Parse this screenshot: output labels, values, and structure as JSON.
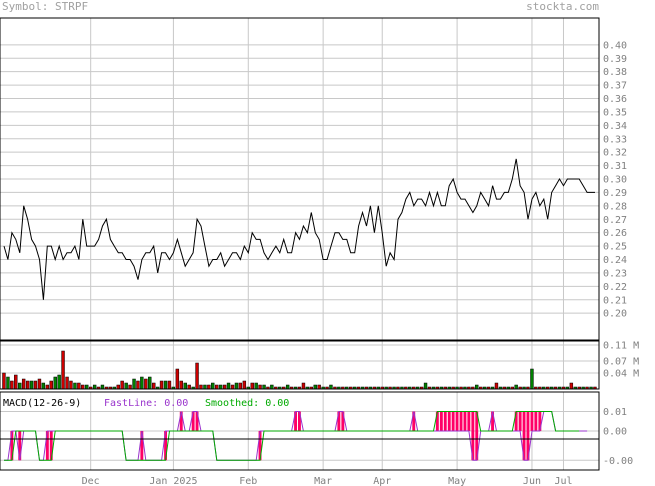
{
  "header": {
    "symbol": "Symbol: STRPF",
    "site": "stockta.com"
  },
  "colors": {
    "grid": "#c8c8c8",
    "frame": "#000000",
    "line": "#000000",
    "vol_up": "#008000",
    "vol_down": "#cc0000",
    "macd_fast": "#9933cc",
    "macd_smooth": "#00aa00",
    "macd_bar": "#ff0066",
    "label": "#808080"
  },
  "chart_data": [
    {
      "type": "line",
      "title": "",
      "ylim": [
        0.18,
        0.42
      ],
      "y_ticks": [
        "0.40",
        "0.39",
        "0.38",
        "0.37",
        "0.36",
        "0.35",
        "0.34",
        "0.33",
        "0.32",
        "0.31",
        "0.30",
        "0.29",
        "0.28",
        "0.27",
        "0.26",
        "0.25",
        "0.24",
        "0.23",
        "0.22",
        "0.21",
        "0.20"
      ],
      "x_tick_labels": [
        "Dec",
        "Jan 2025",
        "Feb",
        "Mar",
        "Apr",
        "May",
        "Jun",
        "Jul"
      ],
      "x_tick_trading_index": [
        22,
        43,
        62,
        81,
        96,
        115,
        134,
        142
      ],
      "grid": true,
      "series": [
        {
          "values": [
            0.25,
            0.24,
            0.26,
            0.255,
            0.245,
            0.28,
            0.27,
            0.255,
            0.25,
            0.24,
            0.21,
            0.25,
            0.25,
            0.24,
            0.25,
            0.24,
            0.245,
            0.245,
            0.25,
            0.24,
            0.27,
            0.25,
            0.25,
            0.25,
            0.255,
            0.265,
            0.27,
            0.255,
            0.25,
            0.245,
            0.245,
            0.24,
            0.24,
            0.235,
            0.225,
            0.24,
            0.245,
            0.245,
            0.25,
            0.23,
            0.245,
            0.245,
            0.24,
            0.245,
            0.255,
            0.245,
            0.235,
            0.24,
            0.245,
            0.27,
            0.265,
            0.25,
            0.235,
            0.24,
            0.24,
            0.245,
            0.235,
            0.24,
            0.245,
            0.245,
            0.24,
            0.25,
            0.245,
            0.26,
            0.255,
            0.255,
            0.245,
            0.24,
            0.245,
            0.25,
            0.245,
            0.255,
            0.245,
            0.245,
            0.26,
            0.255,
            0.265,
            0.26,
            0.275,
            0.26,
            0.255,
            0.24,
            0.24,
            0.25,
            0.26,
            0.26,
            0.255,
            0.255,
            0.245,
            0.245,
            0.265,
            0.275,
            0.265,
            0.28,
            0.26,
            0.28,
            0.26,
            0.235,
            0.245,
            0.24,
            0.27,
            0.275,
            0.285,
            0.29,
            0.28,
            0.285,
            0.285,
            0.28,
            0.29,
            0.28,
            0.29,
            0.28,
            0.28,
            0.295,
            0.3,
            0.29,
            0.285,
            0.285,
            0.28,
            0.275,
            0.28,
            0.29,
            0.285,
            0.28,
            0.295,
            0.285,
            0.285,
            0.29,
            0.29,
            0.3,
            0.315,
            0.295,
            0.29,
            0.27,
            0.285,
            0.29,
            0.28,
            0.285,
            0.27,
            0.29,
            0.295,
            0.3,
            0.295,
            0.3,
            0.3,
            0.3,
            0.3,
            0.295,
            0.29,
            0.29,
            0.29
          ]
        }
      ]
    },
    {
      "type": "bar",
      "title": "",
      "ylim": [
        0,
        0.12
      ],
      "y_ticks": [
        "0.11 M",
        "0.07 M",
        "0.04 M"
      ],
      "series": [
        {
          "values": [
            0.04,
            0.03,
            0.02,
            0.035,
            0.015,
            0.025,
            0.02,
            0.02,
            0.02,
            0.025,
            0.015,
            0.01,
            0.02,
            0.03,
            0.035,
            0.095,
            0.03,
            0.02,
            0.015,
            0.015,
            0.01,
            0.01,
            0.005,
            0.01,
            0.005,
            0.01,
            0.005,
            0.005,
            0.005,
            0.01,
            0.02,
            0.015,
            0.01,
            0.025,
            0.02,
            0.03,
            0.025,
            0.03,
            0.015,
            0.005,
            0.02,
            0.02,
            0.02,
            0.005,
            0.05,
            0.02,
            0.015,
            0.01,
            0.005,
            0.065,
            0.01,
            0.01,
            0.01,
            0.015,
            0.01,
            0.01,
            0.01,
            0.015,
            0.01,
            0.015,
            0.015,
            0.02,
            0.005,
            0.015,
            0.015,
            0.01,
            0.01,
            0.005,
            0.01,
            0.005,
            0.005,
            0.005,
            0.01,
            0.005,
            0.005,
            0.005,
            0.015,
            0.005,
            0.005,
            0.01,
            0.01,
            0.005,
            0.005,
            0.01,
            0.005,
            0.005,
            0.005,
            0.005,
            0.005,
            0.005,
            0.005,
            0.005,
            0.005,
            0.005,
            0.005,
            0.005,
            0.005,
            0.005,
            0.005,
            0.005,
            0.005,
            0.005,
            0.005,
            0.005,
            0.005,
            0.005,
            0.005,
            0.015,
            0.005,
            0.005,
            0.005,
            0.005,
            0.005,
            0.005,
            0.005,
            0.005,
            0.005,
            0.005,
            0.005,
            0.005,
            0.01,
            0.005,
            0.005,
            0.005,
            0.005,
            0.015,
            0.005,
            0.005,
            0.005,
            0.005,
            0.01,
            0.005,
            0.005,
            0.005,
            0.05,
            0.005,
            0.005,
            0.005,
            0.005,
            0.005,
            0.005,
            0.005,
            0.005,
            0.005,
            0.015,
            0.005,
            0.005,
            0.005,
            0.005,
            0.005,
            0.005
          ]
        },
        {
          "direction": [
            "d",
            "u",
            "d",
            "d",
            "u",
            "d",
            "d",
            "u",
            "d",
            "d",
            "u",
            "d",
            "d",
            "u",
            "u",
            "d",
            "d",
            "d",
            "u",
            "d",
            "d",
            "u",
            "d",
            "u",
            "d",
            "u",
            "d",
            "d",
            "u",
            "d",
            "d",
            "u",
            "d",
            "u",
            "d",
            "u",
            "d",
            "u",
            "d",
            "u",
            "d",
            "u",
            "d",
            "u",
            "d",
            "d",
            "u",
            "d",
            "u",
            "d",
            "d",
            "u",
            "d",
            "u",
            "d",
            "u",
            "d",
            "u",
            "d",
            "u",
            "d",
            "d",
            "u",
            "d",
            "u",
            "d",
            "u",
            "d",
            "u",
            "d",
            "u",
            "d",
            "u",
            "d",
            "u",
            "d",
            "d",
            "u",
            "d",
            "u",
            "d",
            "u",
            "d",
            "u",
            "d",
            "u",
            "d",
            "u",
            "d",
            "u",
            "d",
            "u",
            "d",
            "u",
            "d",
            "u",
            "d",
            "u",
            "d",
            "u",
            "d",
            "u",
            "d",
            "u",
            "d",
            "u",
            "d",
            "u",
            "d",
            "u",
            "d",
            "u",
            "d",
            "u",
            "d",
            "u",
            "d",
            "u",
            "d",
            "d",
            "u",
            "d",
            "u",
            "d",
            "u",
            "d",
            "u",
            "d",
            "u",
            "d",
            "u",
            "d",
            "u",
            "d",
            "u",
            "d",
            "d",
            "u",
            "d",
            "u",
            "d",
            "u",
            "d",
            "u",
            "d",
            "u",
            "d",
            "u",
            "d",
            "u",
            "d"
          ]
        }
      ]
    },
    {
      "type": "line",
      "title": "",
      "label_prefix": "MACD(12-26-9)",
      "fastline_label": "FastLine: 0.00",
      "smoothed_label": "Smoothed: 0.00",
      "ylim": [
        -0.02,
        0.02
      ],
      "y_ticks": [
        "0.01",
        "0.00",
        "-0.00"
      ],
      "series": [
        {
          "name": "FastLine",
          "values": [
            -0.015,
            -0.015,
            0.0,
            0.0,
            -0.015,
            0.0,
            0.0,
            0.0,
            0.0,
            -0.015,
            -0.015,
            0.0,
            0.0,
            0.0,
            0.0,
            0.0,
            0.0,
            0.0,
            0.0,
            0.0,
            0.0,
            0.0,
            0.0,
            0.0,
            0.0,
            0.0,
            0.0,
            0.0,
            0.0,
            0.0,
            0.0,
            -0.015,
            -0.015,
            -0.015,
            -0.015,
            0.0,
            -0.015,
            -0.015,
            -0.015,
            -0.015,
            -0.015,
            0.0,
            0.0,
            0.0,
            0.0,
            0.01,
            0.0,
            0.0,
            0.01,
            0.01,
            0.0,
            0.0,
            0.0,
            0.0,
            -0.015,
            -0.015,
            -0.015,
            -0.015,
            -0.015,
            -0.015,
            -0.015,
            -0.015,
            -0.015,
            -0.015,
            -0.015,
            0.0,
            0.0,
            0.0,
            0.0,
            0.0,
            0.0,
            0.0,
            0.0,
            0.0,
            0.01,
            0.01,
            0.0,
            0.0,
            0.0,
            0.0,
            0.0,
            0.0,
            0.0,
            0.0,
            0.0,
            0.01,
            0.01,
            0.0,
            0.0,
            0.0,
            0.0,
            0.0,
            0.0,
            0.0,
            0.0,
            0.0,
            0.0,
            0.0,
            0.0,
            0.0,
            0.0,
            0.0,
            0.0,
            0.0,
            0.01,
            0.0,
            0.0,
            0.0,
            0.0,
            0.0,
            0.0,
            0.0,
            0.0,
            0.0,
            0.0,
            0.0,
            0.0,
            0.0,
            0.0,
            -0.015,
            -0.015,
            0.0,
            0.0,
            0.0,
            0.01,
            0.0,
            0.0,
            0.0,
            0.0,
            0.0,
            0.0,
            0.0,
            -0.015,
            -0.015,
            0.0,
            0.0,
            0.0,
            0.01,
            0.01,
            0.01,
            0.0,
            0.0,
            0.0,
            0.0,
            0.0,
            0.0,
            0.0,
            0.0,
            0.0
          ]
        },
        {
          "name": "Smoothed",
          "values": [
            -0.015,
            -0.015,
            -0.015,
            0.0,
            0.0,
            0.0,
            0.0,
            0.0,
            0.0,
            -0.015,
            -0.015,
            -0.015,
            -0.015,
            0.0,
            0.0,
            0.0,
            0.0,
            0.0,
            0.0,
            0.0,
            0.0,
            0.0,
            0.0,
            0.0,
            0.0,
            0.0,
            0.0,
            0.0,
            0.0,
            0.0,
            0.0,
            -0.015,
            -0.015,
            -0.015,
            -0.015,
            -0.015,
            -0.015,
            -0.015,
            -0.015,
            -0.015,
            -0.015,
            -0.015,
            0.0,
            0.0,
            0.0,
            0.0,
            0.0,
            0.0,
            0.0,
            0.0,
            0.0,
            0.0,
            0.0,
            0.0,
            -0.015,
            -0.015,
            -0.015,
            -0.015,
            -0.015,
            -0.015,
            -0.015,
            -0.015,
            -0.015,
            -0.015,
            -0.015,
            -0.015,
            0.0,
            0.0,
            0.0,
            0.0,
            0.0,
            0.0,
            0.0,
            0.0,
            0.0,
            0.0,
            0.0,
            0.0,
            0.0,
            0.0,
            0.0,
            0.0,
            0.0,
            0.0,
            0.0,
            0.0,
            0.0,
            0.0,
            0.0,
            0.0,
            0.0,
            0.0,
            0.0,
            0.0,
            0.0,
            0.0,
            0.0,
            0.0,
            0.0,
            0.0,
            0.0,
            0.0,
            0.0,
            0.0,
            0.0,
            0.0,
            0.0,
            0.0,
            0.0,
            0.0,
            0.01,
            0.01,
            0.01,
            0.01,
            0.01,
            0.01,
            0.01,
            0.01,
            0.01,
            0.01,
            0.01,
            0.0,
            0.0,
            0.0,
            0.0,
            0.0,
            0.0,
            0.0,
            0.0,
            0.0,
            0.01,
            0.01,
            0.01,
            0.01,
            0.01,
            0.01,
            0.01,
            0.01,
            0.01,
            0.01,
            0.0,
            0.0,
            0.0,
            0.0,
            0.0,
            0.0,
            0.0
          ]
        },
        {
          "name": "bars",
          "values": [
            0.0,
            0.0,
            0.0,
            0.0,
            0.0,
            0.0,
            0.0,
            0.0,
            0.0,
            0.0,
            0.0,
            0.0,
            0.0,
            0.0,
            0.0,
            0.0,
            0.0,
            0.0,
            0.0,
            0.0,
            0.0,
            0.0,
            0.0,
            0.0,
            0.0,
            0.0,
            0.0,
            0.0,
            0.0,
            0.0,
            0.0,
            0.0,
            0.0,
            0.0,
            0.0,
            0.0,
            0.0,
            0.0,
            0.0,
            0.0,
            0.0,
            0.0,
            0.0,
            0.0,
            0.0,
            0.0,
            0.0,
            0.0,
            0.0,
            0.0,
            0.0,
            0.0,
            0.0,
            0.0,
            0.0,
            0.0,
            0.0,
            0.0,
            0.0,
            0.0,
            0.0,
            0.0,
            0.0,
            0.0,
            0.0,
            0.0,
            0.0,
            0.0,
            0.0,
            0.0,
            0.0,
            0.0,
            0.0,
            0.0,
            0.0,
            0.0,
            0.0,
            0.0,
            0.0,
            0.0,
            0.0,
            0.0,
            0.0,
            0.0,
            0.0,
            0.0,
            0.0,
            0.0,
            0.0,
            0.0,
            0.0,
            0.0,
            0.0,
            0.0,
            0.0,
            0.0,
            0.0,
            0.0,
            0.0,
            0.0,
            0.0,
            0.0,
            0.0,
            0.0,
            0.0,
            0.0,
            0.0,
            0.0,
            0.0,
            0.0,
            0.0,
            0.0,
            0.0,
            0.0,
            0.0,
            0.0,
            0.0,
            0.0,
            0.0,
            0.0,
            0.0,
            0.0,
            0.0,
            0.0,
            0.0,
            0.0,
            0.0,
            0.0,
            0.0,
            0.0,
            0.0,
            0.0,
            0.0,
            0.0,
            0.0,
            0.0,
            0.0,
            0.0,
            0.0,
            0.0,
            0.0,
            0.0,
            0.0,
            0.0,
            0.0,
            0.0,
            0.0
          ]
        }
      ]
    }
  ]
}
